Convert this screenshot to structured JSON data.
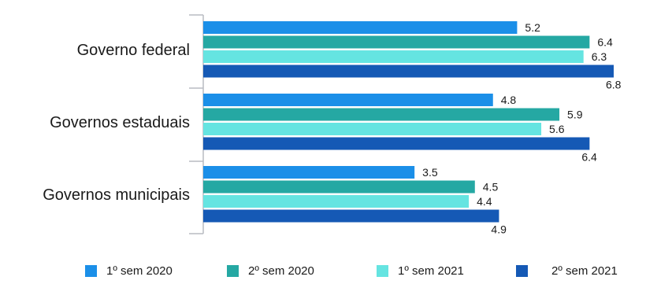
{
  "chart_data": {
    "type": "bar",
    "orientation": "horizontal",
    "categories": [
      "Governo federal",
      "Governos estaduais",
      "Governos municipais"
    ],
    "series": [
      {
        "name": "1º sem 2020",
        "color": "#1b8fe8",
        "values": [
          5.2,
          4.8,
          3.5
        ]
      },
      {
        "name": "2º sem 2020",
        "color": "#25a8a3",
        "values": [
          6.4,
          5.9,
          4.5
        ]
      },
      {
        "name": "1º sem 2021",
        "color": "#65e4e1",
        "values": [
          6.3,
          5.6,
          4.4
        ]
      },
      {
        "name": "2º sem 2021",
        "color": "#1559b5",
        "values": [
          6.8,
          6.4,
          4.9
        ]
      }
    ],
    "title": "",
    "xlabel": "",
    "ylabel": "",
    "xlim": [
      0,
      7.1
    ],
    "grid": false,
    "legend": "bottom"
  }
}
